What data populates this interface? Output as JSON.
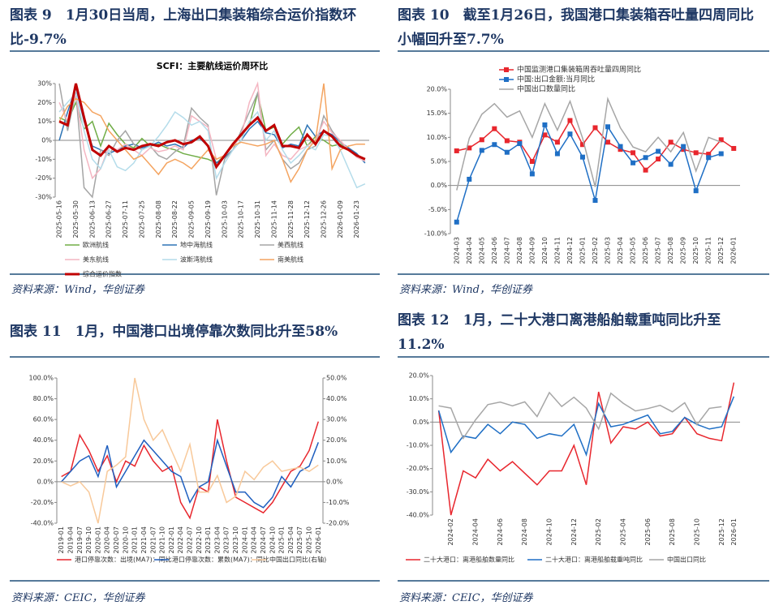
{
  "figures": [
    {
      "heading": "图表 9　1月30日当周，上海出口集装箱综合运价指数环比-9.7%",
      "source": "资料来源：Wind，华创证券"
    },
    {
      "heading": "图表 10　截至1月26日，我国港口集装箱吞吐量四周同比小幅回升至7.7%",
      "source": "资料来源：Wind，华创证券"
    },
    {
      "heading": "图表 11　1月，中国港口出境停靠次数同比升至58%",
      "source": "资料来源：CEIC，华创证券"
    },
    {
      "heading": "图表 12　1月，二十大港口离港船舶载重吨同比升至11.2%",
      "source": "资料来源：CEIC，华创证券"
    }
  ],
  "chart_data": [
    {
      "type": "line",
      "title": "SCFI：主要航线运价周环比",
      "legend": "bottom",
      "categories": [
        "2025-05-16",
        null,
        "2025-05-30",
        null,
        "2025-06-13",
        null,
        "2025-06-27",
        null,
        "2025-07-11",
        null,
        "2025-07-25",
        null,
        "2025-08-08",
        null,
        "2025-08-22",
        null,
        "2025-09-05",
        null,
        "2025-09-19",
        null,
        "2025-10-03",
        null,
        "2025-10-17",
        null,
        "2025-10-31",
        null,
        "2025-11-14",
        null,
        "2025-11-28",
        null,
        "2025-12-12",
        null,
        "2025-12-26",
        null,
        "2026-01-09",
        null,
        "2026-01-23",
        null
      ],
      "ylim": [
        -30,
        30
      ],
      "yticks": [
        {
          "value": -30,
          "label": "-30%"
        },
        {
          "value": -20,
          "label": "-20%"
        },
        {
          "value": -10,
          "label": "-10%"
        },
        {
          "value": 0,
          "label": "0%"
        },
        {
          "value": 10,
          "label": "10%"
        },
        {
          "value": 20,
          "label": "20%"
        },
        {
          "value": 30,
          "label": "30%"
        }
      ],
      "series": [
        {
          "name": "欧洲航线",
          "color": "#70ad47",
          "values": [
            12,
            10,
            20,
            6,
            10,
            -3,
            9,
            3,
            -2,
            -4,
            1,
            -3,
            -2,
            -4,
            -5,
            -7,
            -8,
            -9,
            -10,
            -12,
            -8,
            -3,
            2,
            8,
            25,
            5,
            7,
            -2,
            3,
            7,
            -3,
            2,
            0,
            -3,
            -2,
            -5,
            -8,
            -10
          ]
        },
        {
          "name": "地中海航线",
          "color": "#2e75b6",
          "values": [
            0,
            15,
            28,
            10,
            -3,
            -5,
            -7,
            -5,
            -3,
            -2,
            -4,
            -3,
            -1,
            -3,
            -2,
            -4,
            0,
            1,
            -3,
            -12,
            -9,
            -5,
            0,
            6,
            10,
            4,
            3,
            -4,
            -2,
            -3,
            8,
            2,
            5,
            3,
            -1,
            -4,
            -7,
            -12
          ]
        },
        {
          "name": "美西航线",
          "color": "#a5a5a5",
          "values": [
            30,
            5,
            25,
            -25,
            -30,
            -5,
            -8,
            0,
            5,
            -2,
            -5,
            -3,
            -8,
            -10,
            -6,
            -3,
            17,
            12,
            8,
            -29,
            -10,
            -5,
            5,
            15,
            25,
            -5,
            0,
            -10,
            -15,
            -12,
            -5,
            -3,
            13,
            5,
            -1,
            -5,
            -8,
            -11
          ]
        },
        {
          "name": "美东航线",
          "color": "#f4b6c2",
          "values": [
            20,
            10,
            25,
            -5,
            -20,
            -15,
            -3,
            -5,
            -2,
            -5,
            -8,
            -4,
            -6,
            -5,
            -3,
            -5,
            13,
            10,
            7,
            -10,
            -8,
            -3,
            2,
            20,
            30,
            -8,
            -2,
            -8,
            -10,
            -5,
            -3,
            0,
            10,
            4,
            0,
            -5,
            -9,
            -11
          ]
        },
        {
          "name": "波斯湾航线",
          "color": "#b4dcea",
          "values": [
            15,
            20,
            25,
            5,
            -10,
            -15,
            -5,
            -14,
            -16,
            -12,
            -5,
            -3,
            2,
            8,
            15,
            12,
            8,
            10,
            5,
            -20,
            -12,
            -5,
            0,
            10,
            15,
            0,
            5,
            -5,
            -12,
            -8,
            -3,
            -5,
            3,
            2,
            -5,
            -15,
            -25,
            -23
          ]
        },
        {
          "name": "南美航线",
          "color": "#f4a460",
          "values": [
            10,
            18,
            22,
            20,
            15,
            13,
            5,
            0,
            -5,
            -10,
            -8,
            -13,
            -18,
            -12,
            -10,
            -12,
            -15,
            -10,
            -5,
            -10,
            -8,
            -3,
            -1,
            -2,
            -3,
            -2,
            0,
            -10,
            -22,
            -15,
            -5,
            0,
            30,
            -15,
            -5,
            -3,
            -2,
            -2
          ]
        },
        {
          "name": "综合运价指数",
          "color": "#c00000",
          "values": [
            10,
            8,
            30,
            12,
            -5,
            -8,
            -3,
            -6,
            -4,
            -5,
            -3,
            -2,
            -3,
            -1,
            0,
            -2,
            -1,
            2,
            -3,
            -14,
            -8,
            -2,
            3,
            8,
            12,
            5,
            8,
            -3,
            -3,
            -4,
            3,
            -2,
            5,
            2,
            -3,
            -5,
            -8,
            -10
          ]
        }
      ]
    },
    {
      "type": "line",
      "legend": "upper left",
      "categories": [
        "2024-03",
        "2024-04",
        "2024-05",
        "2024-06",
        "2024-07",
        "2024-08",
        "2024-09",
        "2024-10",
        "2024-11",
        "2024-12",
        "2025-01",
        "2025-02",
        "2025-03",
        "2025-04",
        "2025-05",
        "2025-06",
        "2025-07",
        "2025-08",
        "2025-09",
        "2025-10",
        "2025-11",
        "2025-12",
        "2026-01"
      ],
      "ylim": [
        -10,
        20
      ],
      "yticks": [
        {
          "value": -10,
          "label": "-10.0%"
        },
        {
          "value": -5,
          "label": "-5.0%"
        },
        {
          "value": 0,
          "label": "0.0%"
        },
        {
          "value": 5,
          "label": "5.0%"
        },
        {
          "value": 10,
          "label": "10.0%"
        },
        {
          "value": 15,
          "label": "15.0%"
        },
        {
          "value": 20,
          "label": "20.0%"
        }
      ],
      "series": [
        {
          "name": "中国监测港口集装箱周吞吐量四周同比",
          "color": "#e8262d",
          "marker": "square",
          "values": [
            7.2,
            7.8,
            9.5,
            11.8,
            9.3,
            9.0,
            5.0,
            10.5,
            9.0,
            13.5,
            8.5,
            12.0,
            9.0,
            7.5,
            6.8,
            3.2,
            5.5,
            9.0,
            7.5,
            6.8,
            6.5,
            9.5,
            7.7
          ]
        },
        {
          "name": "中国:出口金额:当月同比",
          "color": "#1f6fc5",
          "marker": "square",
          "values": [
            -7.6,
            1.3,
            7.3,
            8.5,
            6.9,
            8.7,
            2.4,
            12.6,
            6.6,
            10.7,
            5.9,
            -3.1,
            12.2,
            8.1,
            4.7,
            5.8,
            7.1,
            4.4,
            8.1,
            -1.1,
            5.8,
            6.6,
            null
          ]
        },
        {
          "name": "中国出口数量同比",
          "color": "#a6a6a6",
          "values": [
            -1,
            9.8,
            14.8,
            17,
            14.2,
            15.5,
            10,
            17,
            11.5,
            17.5,
            9.8,
            -0.3,
            18,
            12,
            8,
            7,
            10,
            7,
            11,
            3,
            10,
            9,
            null
          ]
        }
      ]
    },
    {
      "type": "line",
      "legend": "bottom",
      "categories": [
        "2019-01",
        "2019-04",
        "2019-07",
        "2019-10",
        "2020-01",
        "2020-04",
        "2020-07",
        "2020-10",
        "2021-01",
        "2021-04",
        "2021-07",
        "2021-10",
        "2022-01",
        "2022-04",
        "2022-07",
        "2022-10",
        "2023-01",
        "2023-04",
        "2023-07",
        "2023-10",
        "2024-01",
        "2024-04",
        "2024-07",
        "2024-10",
        "2025-01",
        "2025-04",
        "2025-07",
        "2025-10",
        "2026-01"
      ],
      "ylim": [
        -40,
        100
      ],
      "yticks": [
        {
          "value": -40,
          "label": "-40.0%"
        },
        {
          "value": -20,
          "label": "-20.0%"
        },
        {
          "value": 0,
          "label": "0.0%"
        },
        {
          "value": 20,
          "label": "20.0%"
        },
        {
          "value": 40,
          "label": "40.0%"
        },
        {
          "value": 60,
          "label": "60.0%"
        },
        {
          "value": 80,
          "label": "80.0%"
        },
        {
          "value": 100,
          "label": "100.0%"
        }
      ],
      "y2lim": [
        -20,
        50
      ],
      "y2ticks": [
        {
          "value": -20,
          "label": "-20.0%"
        },
        {
          "value": -10,
          "label": "-10.0%"
        },
        {
          "value": 0,
          "label": "0.0%"
        },
        {
          "value": 10,
          "label": "10.0%"
        },
        {
          "value": 20,
          "label": "20.0%"
        },
        {
          "value": 30,
          "label": "30.0%"
        },
        {
          "value": 40,
          "label": "40.0%"
        },
        {
          "value": 50,
          "label": "50.0%"
        }
      ],
      "series": [
        {
          "name": "港口停靠次数：出境(MA7)：同比",
          "color": "#e8262d",
          "values": [
            5,
            10,
            45,
            30,
            10,
            25,
            0,
            20,
            15,
            35,
            20,
            10,
            15,
            -20,
            -35,
            -5,
            -10,
            60,
            20,
            -15,
            -20,
            -25,
            -30,
            -20,
            -5,
            10,
            15,
            30,
            58
          ]
        },
        {
          "name": "港口停靠次数：累数(MA7)：同比",
          "color": "#1f5fbf",
          "values": [
            0,
            10,
            20,
            25,
            5,
            35,
            -5,
            10,
            25,
            40,
            30,
            20,
            10,
            5,
            -20,
            -5,
            0,
            40,
            15,
            -10,
            -10,
            -20,
            -25,
            -15,
            5,
            -5,
            10,
            15,
            38
          ]
        },
        {
          "name": "中国出口同比(右轴)",
          "color": "#f8c99a",
          "axis": "y2",
          "values": [
            0,
            -2,
            0,
            -5,
            -20,
            5,
            8,
            12,
            50,
            30,
            20,
            25,
            15,
            5,
            18,
            -5,
            -5,
            3,
            -10,
            -7,
            5,
            1,
            7,
            10,
            5,
            6,
            7,
            5,
            8
          ]
        }
      ]
    },
    {
      "type": "line",
      "legend": "bottom",
      "categories": [
        null,
        "2024-02",
        null,
        "2024-04",
        null,
        "2024-06",
        null,
        "2024-08",
        null,
        "2024-10",
        null,
        "2024-12",
        null,
        "2025-02",
        null,
        "2025-04",
        null,
        "2025-06",
        null,
        "2025-08",
        null,
        "2025-10",
        null,
        "2025-12",
        "2026-01"
      ],
      "ylim": [
        -40,
        20
      ],
      "yticks": [
        {
          "value": -40,
          "label": "-40.0%"
        },
        {
          "value": -30,
          "label": "-30.0%"
        },
        {
          "value": -20,
          "label": "-20.0%"
        },
        {
          "value": -10,
          "label": "-10.0%"
        },
        {
          "value": 0,
          "label": "0.0%"
        },
        {
          "value": 10,
          "label": "10.0%"
        },
        {
          "value": 20,
          "label": "20.0%"
        }
      ],
      "series": [
        {
          "name": "二十大港口：离港船舶数量同比",
          "color": "#e8262d",
          "values": [
            5,
            -40,
            -21,
            -24,
            -16,
            -21,
            -17,
            -22,
            -27,
            -21,
            -21,
            -10,
            -27,
            13,
            -9,
            -2,
            -3,
            0,
            -6,
            -5,
            2,
            -5,
            -7,
            -8,
            17
          ]
        },
        {
          "name": "二十大港口：离港船舶载重吨同比",
          "color": "#1f6fc5",
          "values": [
            5,
            -13,
            -6,
            -7,
            -1,
            -5,
            0,
            -1,
            -7,
            -5,
            -6,
            -1,
            -14,
            8,
            -2,
            -1,
            1,
            3,
            -5,
            -4,
            2,
            -1,
            -3,
            -2,
            11
          ]
        },
        {
          "name": "中国出口同比",
          "color": "#a6a6a6",
          "values": [
            7,
            6,
            -7,
            1,
            7.5,
            8.6,
            7,
            8.7,
            2.4,
            12.7,
            6.7,
            10.7,
            6,
            -3,
            12.4,
            8.1,
            4.8,
            5.8,
            7.2,
            4.4,
            8.3,
            -1.1,
            5.9,
            6.6,
            null
          ]
        }
      ]
    }
  ]
}
